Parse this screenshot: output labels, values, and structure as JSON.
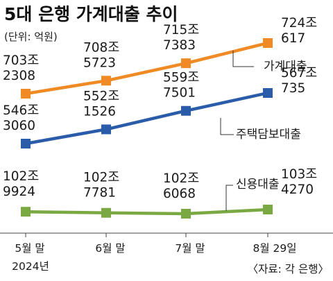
{
  "chart_data": {
    "type": "line",
    "title": "5대 은행 가계대출 추이",
    "unit_note": "(단위: 억원)",
    "source": "〈자료: 각 은행〉",
    "categories": [
      "5월 말",
      "6월 말",
      "7월 말",
      "8월 29일"
    ],
    "category_sub": [
      "2024년",
      "",
      "",
      ""
    ],
    "series": [
      {
        "name": "가계대출",
        "color": "#f08a24",
        "values": [
          7032308,
          7085723,
          7157383,
          7240617
        ],
        "labels": [
          [
            "703조",
            "2308"
          ],
          [
            "708조",
            "5723"
          ],
          [
            "715조",
            "7383"
          ],
          [
            "724조",
            "617"
          ]
        ]
      },
      {
        "name": "주택담보대출",
        "color": "#2a5caa",
        "values": [
          5463060,
          5521526,
          5597501,
          5670735
        ],
        "labels": [
          [
            "546조",
            "3060"
          ],
          [
            "552조",
            "1526"
          ],
          [
            "559조",
            "7501"
          ],
          [
            "567조",
            "735"
          ]
        ]
      },
      {
        "name": "신용대출",
        "color": "#7aa842",
        "values": [
          1029924,
          1027781,
          1026068,
          1034270
        ],
        "labels": [
          [
            "102조",
            "9924"
          ],
          [
            "102조",
            "7781"
          ],
          [
            "102조",
            "6068"
          ],
          [
            "103조",
            "4270"
          ]
        ]
      }
    ],
    "grid": false,
    "legend": "callout labels next to lines"
  }
}
